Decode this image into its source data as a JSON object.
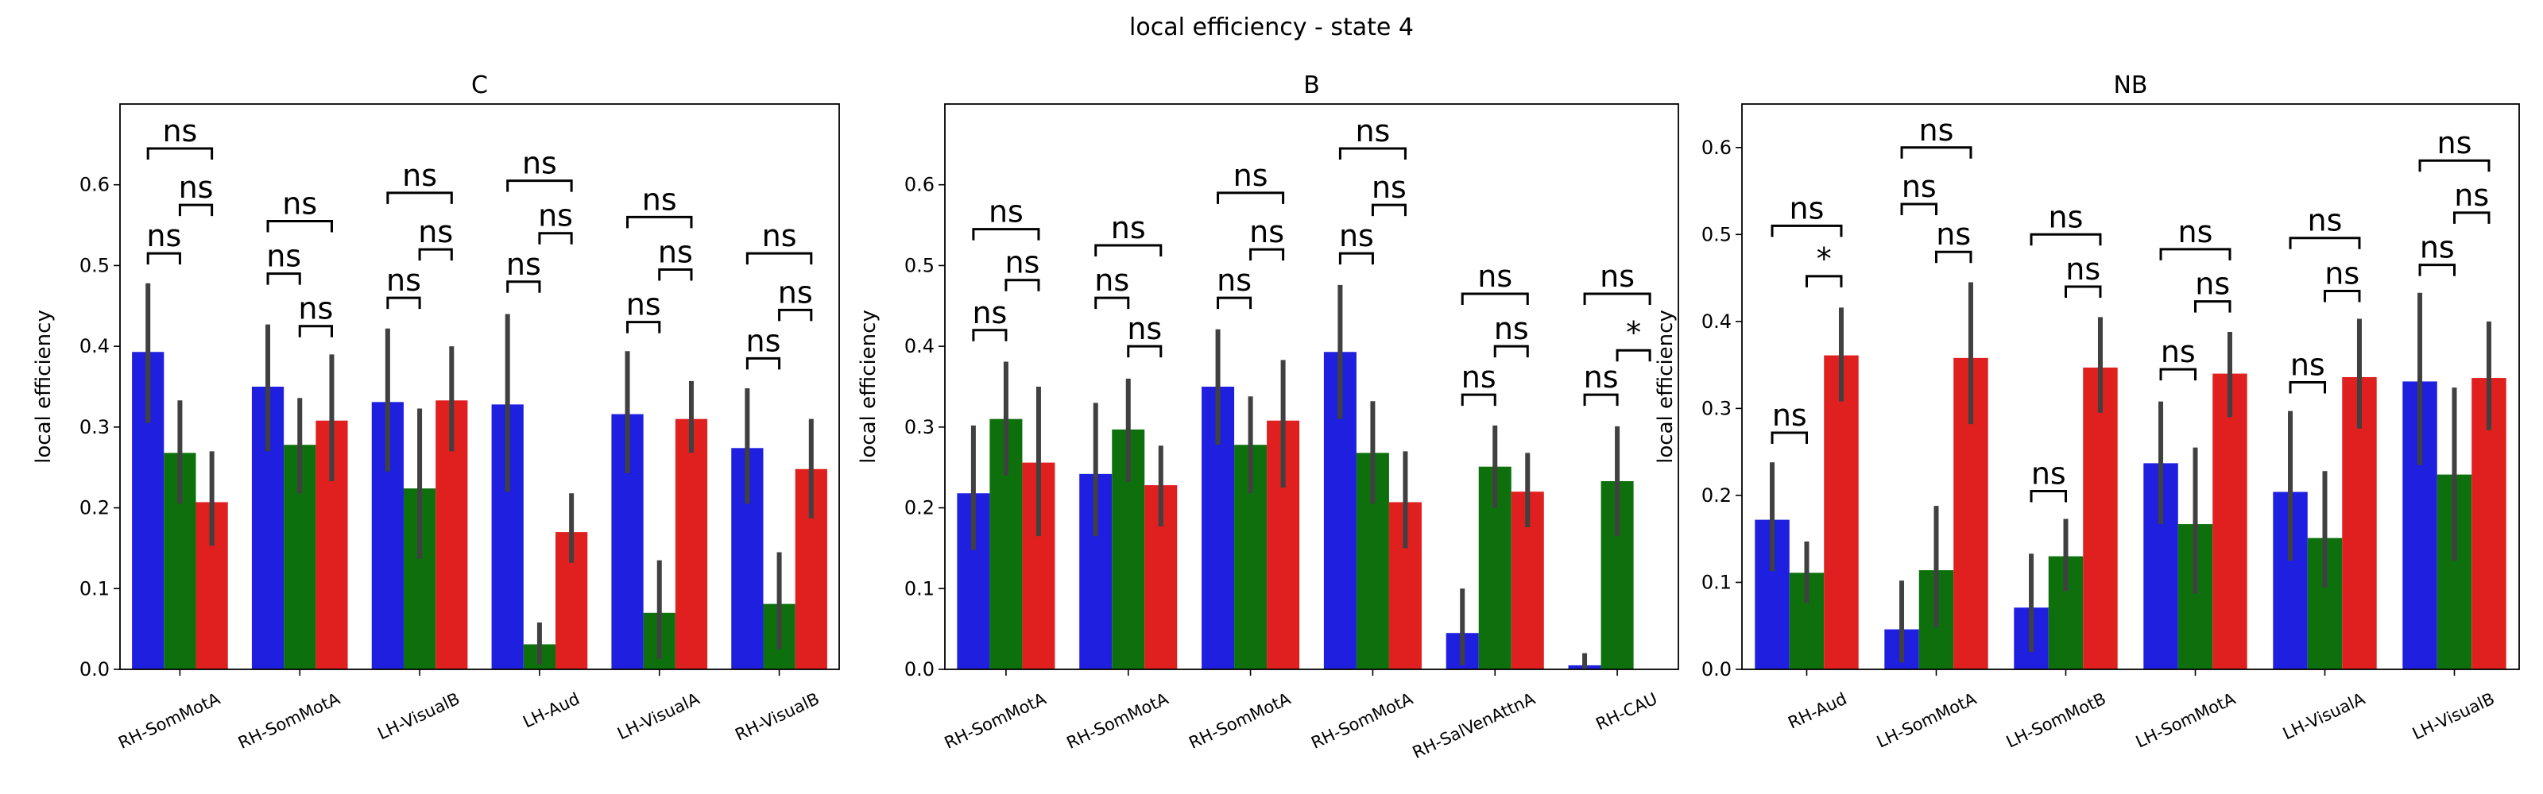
{
  "figure": {
    "suptitle": "local efficiency - state 4"
  },
  "colors": {
    "hue": [
      "#1f1fe0",
      "#0d700d",
      "#e01f1f"
    ],
    "errorbar": "#404040"
  },
  "chart_data": [
    {
      "type": "bar",
      "title": "C",
      "ylabel": "local efficiency",
      "ylim": [
        0,
        0.7
      ],
      "yticks": [
        0.0,
        0.1,
        0.2,
        0.3,
        0.4,
        0.5,
        0.6
      ],
      "categories": [
        "RH-SomMotA",
        "RH-SomMotA",
        "LH-VisualB",
        "LH-Aud",
        "LH-VisualA",
        "RH-VisualB"
      ],
      "series": [
        {
          "values": [
            0.393,
            0.35,
            0.331,
            0.328,
            0.316,
            0.274
          ],
          "ci": [
            [
              0.305,
              0.478
            ],
            [
              0.27,
              0.427
            ],
            [
              0.245,
              0.422
            ],
            [
              0.22,
              0.44
            ],
            [
              0.243,
              0.394
            ],
            [
              0.205,
              0.348
            ]
          ]
        },
        {
          "values": [
            0.268,
            0.278,
            0.224,
            0.031,
            0.07,
            0.081
          ],
          "ci": [
            [
              0.205,
              0.333
            ],
            [
              0.218,
              0.336
            ],
            [
              0.137,
              0.323
            ],
            [
              0.006,
              0.058
            ],
            [
              0.013,
              0.135
            ],
            [
              0.025,
              0.145
            ]
          ]
        },
        {
          "values": [
            0.207,
            0.308,
            0.333,
            0.17,
            0.31,
            0.248
          ],
          "ci": [
            [
              0.153,
              0.27
            ],
            [
              0.233,
              0.39
            ],
            [
              0.27,
              0.4
            ],
            [
              0.132,
              0.218
            ],
            [
              0.268,
              0.357
            ],
            [
              0.187,
              0.31
            ]
          ]
        }
      ],
      "annotations": [
        {
          "bar_from": 0,
          "bar_to": 1,
          "y": 0.515,
          "text": "ns"
        },
        {
          "bar_from": 1,
          "bar_to": 2,
          "y": 0.575,
          "text": "ns"
        },
        {
          "bar_from": 0,
          "bar_to": 2,
          "y": 0.645,
          "text": "ns"
        },
        {
          "bar_from": 0,
          "bar_to": 1,
          "y": 0.49,
          "text": "ns"
        },
        {
          "bar_from": 1,
          "bar_to": 2,
          "y": 0.425,
          "text": "ns"
        },
        {
          "bar_from": 0,
          "bar_to": 2,
          "y": 0.555,
          "text": "ns"
        },
        {
          "bar_from": 0,
          "bar_to": 1,
          "y": 0.46,
          "text": "ns"
        },
        {
          "bar_from": 1,
          "bar_to": 2,
          "y": 0.52,
          "text": "ns"
        },
        {
          "bar_from": 0,
          "bar_to": 2,
          "y": 0.59,
          "text": "ns"
        },
        {
          "bar_from": 0,
          "bar_to": 1,
          "y": 0.48,
          "text": "ns"
        },
        {
          "bar_from": 1,
          "bar_to": 2,
          "y": 0.54,
          "text": "ns"
        },
        {
          "bar_from": 0,
          "bar_to": 2,
          "y": 0.605,
          "text": "ns"
        },
        {
          "bar_from": 0,
          "bar_to": 1,
          "y": 0.43,
          "text": "ns"
        },
        {
          "bar_from": 1,
          "bar_to": 2,
          "y": 0.495,
          "text": "ns"
        },
        {
          "bar_from": 0,
          "bar_to": 2,
          "y": 0.56,
          "text": "ns"
        },
        {
          "bar_from": 0,
          "bar_to": 1,
          "y": 0.385,
          "text": "ns"
        },
        {
          "bar_from": 1,
          "bar_to": 2,
          "y": 0.445,
          "text": "ns"
        },
        {
          "bar_from": 0,
          "bar_to": 2,
          "y": 0.515,
          "text": "ns"
        }
      ]
    },
    {
      "type": "bar",
      "title": "B",
      "ylabel": "local efficiency",
      "ylim": [
        0,
        0.7
      ],
      "yticks": [
        0.0,
        0.1,
        0.2,
        0.3,
        0.4,
        0.5,
        0.6
      ],
      "categories": [
        "RH-SomMotA",
        "RH-SomMotA",
        "RH-SomMotA",
        "RH-SomMotA",
        "RH-SalVenAttnA",
        "RH-CAU"
      ],
      "series": [
        {
          "values": [
            0.218,
            0.242,
            0.35,
            0.393,
            0.045,
            0.005
          ],
          "ci": [
            [
              0.148,
              0.302
            ],
            [
              0.165,
              0.33
            ],
            [
              0.278,
              0.421
            ],
            [
              0.31,
              0.476
            ],
            [
              0.005,
              0.1
            ],
            [
              0.0,
              0.02
            ]
          ]
        },
        {
          "values": [
            0.31,
            0.297,
            0.278,
            0.268,
            0.251,
            0.233
          ],
          "ci": [
            [
              0.24,
              0.381
            ],
            [
              0.232,
              0.36
            ],
            [
              0.218,
              0.338
            ],
            [
              0.205,
              0.332
            ],
            [
              0.2,
              0.302
            ],
            [
              0.165,
              0.301
            ]
          ]
        },
        {
          "values": [
            0.256,
            0.228,
            0.308,
            0.207,
            0.22,
            null
          ],
          "ci": [
            [
              0.165,
              0.35
            ],
            [
              0.177,
              0.277
            ],
            [
              0.225,
              0.383
            ],
            [
              0.15,
              0.27
            ],
            [
              0.176,
              0.268
            ],
            null
          ]
        }
      ],
      "annotations": [
        {
          "bar_from": 0,
          "bar_to": 1,
          "y": 0.42,
          "text": "ns"
        },
        {
          "bar_from": 1,
          "bar_to": 2,
          "y": 0.482,
          "text": "ns"
        },
        {
          "bar_from": 0,
          "bar_to": 2,
          "y": 0.545,
          "text": "ns"
        },
        {
          "bar_from": 0,
          "bar_to": 1,
          "y": 0.46,
          "text": "ns"
        },
        {
          "bar_from": 1,
          "bar_to": 2,
          "y": 0.4,
          "text": "ns"
        },
        {
          "bar_from": 0,
          "bar_to": 2,
          "y": 0.525,
          "text": "ns"
        },
        {
          "bar_from": 0,
          "bar_to": 1,
          "y": 0.46,
          "text": "ns"
        },
        {
          "bar_from": 1,
          "bar_to": 2,
          "y": 0.52,
          "text": "ns"
        },
        {
          "bar_from": 0,
          "bar_to": 2,
          "y": 0.59,
          "text": "ns"
        },
        {
          "bar_from": 0,
          "bar_to": 1,
          "y": 0.515,
          "text": "ns"
        },
        {
          "bar_from": 1,
          "bar_to": 2,
          "y": 0.575,
          "text": "ns"
        },
        {
          "bar_from": 0,
          "bar_to": 2,
          "y": 0.645,
          "text": "ns"
        },
        {
          "bar_from": 0,
          "bar_to": 1,
          "y": 0.34,
          "text": "ns"
        },
        {
          "bar_from": 1,
          "bar_to": 2,
          "y": 0.4,
          "text": "ns"
        },
        {
          "bar_from": 0,
          "bar_to": 2,
          "y": 0.465,
          "text": "ns"
        },
        {
          "bar_from": 0,
          "bar_to": 1,
          "y": 0.34,
          "text": "ns"
        },
        {
          "bar_from": 1,
          "bar_to": 2,
          "y": 0.395,
          "text": "*"
        },
        {
          "bar_from": 0,
          "bar_to": 2,
          "y": 0.465,
          "text": "ns"
        }
      ]
    },
    {
      "type": "bar",
      "title": "NB",
      "ylabel": "local efficiency",
      "ylim": [
        0,
        0.65
      ],
      "yticks": [
        0.0,
        0.1,
        0.2,
        0.3,
        0.4,
        0.5,
        0.6
      ],
      "categories": [
        "RH-Aud",
        "LH-SomMotA",
        "LH-SomMotB",
        "LH-SomMotA",
        "LH-VisualA",
        "LH-VisualB"
      ],
      "series": [
        {
          "values": [
            0.172,
            0.046,
            0.071,
            0.237,
            0.204,
            0.331
          ],
          "ci": [
            [
              0.113,
              0.238
            ],
            [
              0.008,
              0.102
            ],
            [
              0.02,
              0.133
            ],
            [
              0.167,
              0.308
            ],
            [
              0.125,
              0.297
            ],
            [
              0.235,
              0.433
            ]
          ]
        },
        {
          "values": [
            0.111,
            0.114,
            0.13,
            0.167,
            0.151,
            0.224
          ],
          "ci": [
            [
              0.076,
              0.147
            ],
            [
              0.048,
              0.188
            ],
            [
              0.09,
              0.173
            ],
            [
              0.087,
              0.255
            ],
            [
              0.094,
              0.228
            ],
            [
              0.125,
              0.324
            ]
          ]
        },
        {
          "values": [
            0.361,
            0.358,
            0.347,
            0.34,
            0.336,
            0.335
          ],
          "ci": [
            [
              0.308,
              0.416
            ],
            [
              0.282,
              0.445
            ],
            [
              0.295,
              0.405
            ],
            [
              0.29,
              0.388
            ],
            [
              0.277,
              0.403
            ],
            [
              0.275,
              0.4
            ]
          ]
        }
      ],
      "annotations": [
        {
          "bar_from": 0,
          "bar_to": 1,
          "y": 0.272,
          "text": "ns"
        },
        {
          "bar_from": 1,
          "bar_to": 2,
          "y": 0.452,
          "text": "*"
        },
        {
          "bar_from": 0,
          "bar_to": 2,
          "y": 0.51,
          "text": "ns"
        },
        {
          "bar_from": 0,
          "bar_to": 1,
          "y": 0.535,
          "text": "ns"
        },
        {
          "bar_from": 1,
          "bar_to": 2,
          "y": 0.48,
          "text": "ns"
        },
        {
          "bar_from": 0,
          "bar_to": 2,
          "y": 0.6,
          "text": "ns"
        },
        {
          "bar_from": 0,
          "bar_to": 1,
          "y": 0.205,
          "text": "ns"
        },
        {
          "bar_from": 1,
          "bar_to": 2,
          "y": 0.44,
          "text": "ns"
        },
        {
          "bar_from": 0,
          "bar_to": 2,
          "y": 0.5,
          "text": "ns"
        },
        {
          "bar_from": 0,
          "bar_to": 1,
          "y": 0.345,
          "text": "ns"
        },
        {
          "bar_from": 1,
          "bar_to": 2,
          "y": 0.423,
          "text": "ns"
        },
        {
          "bar_from": 0,
          "bar_to": 2,
          "y": 0.483,
          "text": "ns"
        },
        {
          "bar_from": 0,
          "bar_to": 1,
          "y": 0.33,
          "text": "ns"
        },
        {
          "bar_from": 1,
          "bar_to": 2,
          "y": 0.435,
          "text": "ns"
        },
        {
          "bar_from": 0,
          "bar_to": 2,
          "y": 0.496,
          "text": "ns"
        },
        {
          "bar_from": 0,
          "bar_to": 1,
          "y": 0.465,
          "text": "ns"
        },
        {
          "bar_from": 1,
          "bar_to": 2,
          "y": 0.525,
          "text": "ns"
        },
        {
          "bar_from": 0,
          "bar_to": 2,
          "y": 0.585,
          "text": "ns"
        }
      ]
    }
  ]
}
